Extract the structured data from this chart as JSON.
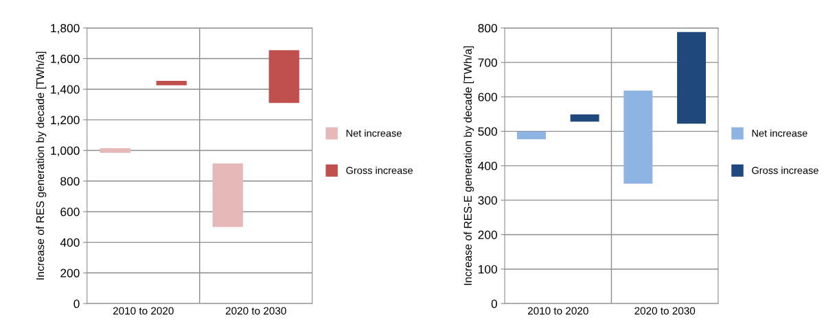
{
  "chart_data": [
    {
      "type": "bar",
      "ylabel": "Increase of RES generation by decade [TWh/a]",
      "categories": [
        "2010 to 2020",
        "2020 to 2030"
      ],
      "series": [
        {
          "name": "Net increase",
          "color": "#e6b9b8",
          "base": [
            985,
            500
          ],
          "values": [
            30,
            415
          ]
        },
        {
          "name": "Gross increase",
          "color": "#c0504d",
          "base": [
            1425,
            1310
          ],
          "values": [
            30,
            345
          ]
        }
      ],
      "ylim": [
        0,
        1800
      ],
      "yticks": [
        0,
        {
          "value": 200,
          "label": "200"
        },
        {
          "value": 400,
          "label": "400"
        },
        {
          "value": 600,
          "label": "600"
        },
        {
          "value": 800,
          "label": "800"
        },
        {
          "value": 1000,
          "label": "1,000"
        },
        {
          "value": 1200,
          "label": "1,200"
        },
        {
          "value": 1400,
          "label": "1,400"
        },
        {
          "value": 1600,
          "label": "1,600"
        },
        {
          "value": 1800,
          "label": "1,800"
        }
      ],
      "grid": true,
      "legend": "right"
    },
    {
      "type": "bar",
      "ylabel": "Increase of RES-E generation by decade [TWh/a]",
      "categories": [
        "2010 to 2020",
        "2020 to 2030"
      ],
      "series": [
        {
          "name": "Net increase",
          "color": "#8db4e2",
          "base": [
            477,
            348
          ],
          "values": [
            23,
            270
          ]
        },
        {
          "name": "Gross increase",
          "color": "#1f497d",
          "base": [
            528,
            522
          ],
          "values": [
            21,
            266
          ]
        }
      ],
      "ylim": [
        0,
        800
      ],
      "yticks": [
        0,
        100,
        200,
        300,
        400,
        500,
        600,
        700,
        800
      ],
      "grid": true,
      "legend": "right"
    }
  ]
}
